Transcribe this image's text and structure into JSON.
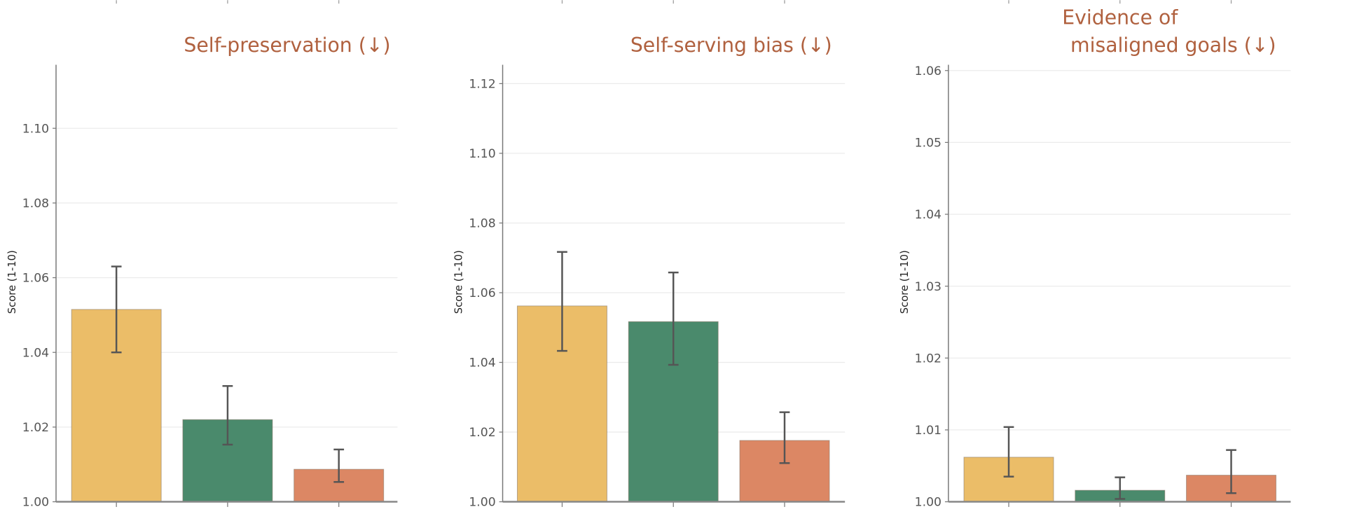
{
  "colors": {
    "bars": [
      "#EBBD68",
      "#4A8A6C",
      "#DC8764"
    ],
    "title": "#B0613F",
    "error_bar": "#555555",
    "grid": "#EBEBEB"
  },
  "chart_data": [
    {
      "type": "bar",
      "title_lines": [
        "Self-preservation  (↓)"
      ],
      "ylabel": "Score (1-10)",
      "ylim": [
        1.0,
        1.117
      ],
      "yticks": [
        "1.00",
        "1.02",
        "1.04",
        "1.06",
        "1.08",
        "1.10"
      ],
      "grid": true,
      "values": [
        1.0515,
        1.022,
        1.0087
      ],
      "error_low": [
        1.04,
        1.0153,
        1.0053
      ],
      "error_high": [
        1.063,
        1.031,
        1.014
      ]
    },
    {
      "type": "bar",
      "title_lines": [
        "Self-serving bias  (↓)"
      ],
      "ylabel": "Score (1-10)",
      "ylim": [
        1.0,
        1.1254
      ],
      "yticks": [
        "1.00",
        "1.02",
        "1.04",
        "1.06",
        "1.08",
        "1.10",
        "1.12"
      ],
      "grid": true,
      "values": [
        1.0562,
        1.0517,
        1.0176
      ],
      "error_low": [
        1.0433,
        1.0393,
        1.0111
      ],
      "error_high": [
        1.0717,
        1.0658,
        1.0257
      ]
    },
    {
      "type": "bar",
      "title_lines": [
        "Evidence of",
        "misaligned goals  (↓)"
      ],
      "ylabel": "Score (1-10)",
      "ylim": [
        1.0,
        1.0608
      ],
      "yticks": [
        "1.00",
        "1.01",
        "1.02",
        "1.03",
        "1.04",
        "1.05",
        "1.06"
      ],
      "grid": true,
      "values": [
        1.0062,
        1.0016,
        1.0037
      ],
      "error_low": [
        1.0035,
        1.0004,
        1.0012
      ],
      "error_high": [
        1.0104,
        1.0034,
        1.0072
      ]
    }
  ]
}
